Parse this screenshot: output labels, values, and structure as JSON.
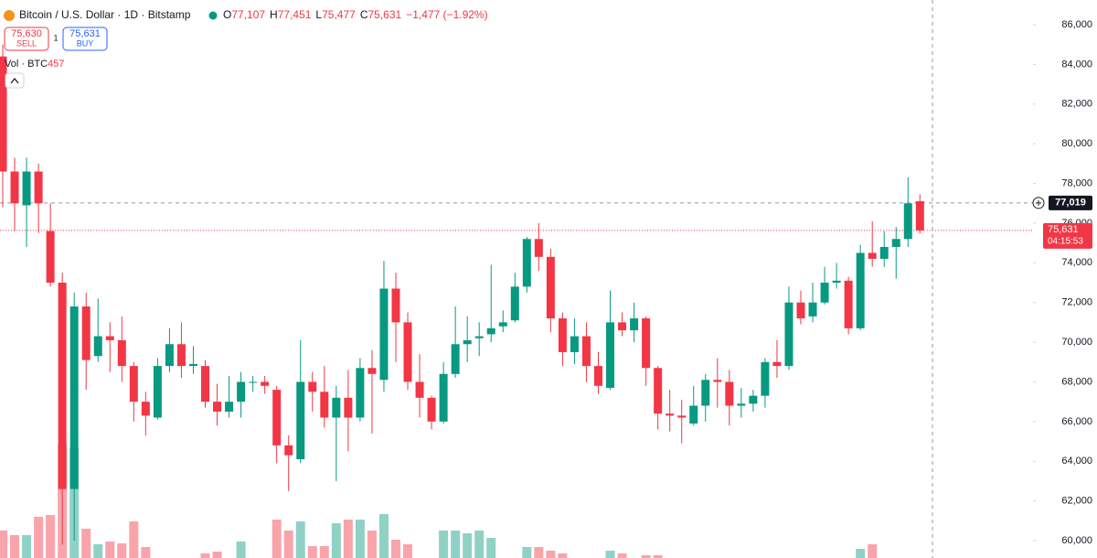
{
  "chart_data": {
    "type": "candlestick",
    "title": "Bitcoin / U.S. Dollar · 1D · Bitstamp",
    "ohlc_header": {
      "o_label": "O",
      "o": "77,107",
      "h_label": "H",
      "h": "77,451",
      "l_label": "L",
      "l": "75,477",
      "c_label": "C",
      "c": "75,631",
      "change": "−1,477 (−1.92%)"
    },
    "trade": {
      "sell_price": "75,630",
      "sell": "SELL",
      "quantity": "1",
      "buy_price": "75,631",
      "buy": "BUY"
    },
    "volume_label": "Vol · BTC",
    "volume_last": "457",
    "crosshair": {
      "value": 77019,
      "label": "77,019"
    },
    "last_price": {
      "value": 75631,
      "label": "75,631",
      "countdown": "04:15:53"
    },
    "up_color": "#089981",
    "down_color": "#f23645",
    "open": [
      84400,
      78600,
      76900,
      78600,
      75600,
      73000,
      62600,
      71800,
      69300,
      70300,
      70100,
      68800,
      67000,
      66200,
      68800,
      69900,
      68800,
      68800,
      67000,
      66500,
      67000,
      68000,
      68000,
      67600,
      64800,
      64100,
      68000,
      67500,
      66200,
      67200,
      66200,
      68700,
      68100,
      72700,
      71000,
      68000,
      67200,
      66000,
      68400,
      69900,
      70200,
      70400,
      70800,
      71100,
      72800,
      75200,
      74300,
      71200,
      69500,
      70300,
      68800,
      67700,
      71000,
      70600,
      71200,
      68700,
      66400,
      66300,
      65900,
      66800,
      68100,
      68000,
      66800,
      66900,
      67300,
      69000,
      68800,
      72000,
      71300,
      72000,
      73000,
      73100,
      70700,
      74500,
      74200,
      74800,
      75200,
      77107
    ],
    "high": [
      85000,
      79300,
      79300,
      79000,
      77000,
      73500,
      72500,
      72500,
      72200,
      71000,
      71300,
      69000,
      67500,
      69200,
      70700,
      71000,
      69800,
      69100,
      67900,
      68300,
      68500,
      68300,
      68300,
      67800,
      65300,
      70100,
      68500,
      68800,
      67800,
      68600,
      69200,
      69600,
      74100,
      73500,
      71500,
      69400,
      67300,
      69000,
      71800,
      71300,
      71000,
      73900,
      71600,
      73500,
      75300,
      76000,
      74700,
      71500,
      71200,
      71000,
      69500,
      72600,
      71500,
      72000,
      71300,
      68800,
      67600,
      67100,
      67800,
      68400,
      69200,
      68600,
      67700,
      67600,
      69200,
      70100,
      72800,
      72600,
      73000,
      73800,
      74000,
      73300,
      74900,
      76100,
      75600,
      75800,
      78300,
      77451
    ],
    "low": [
      76800,
      75600,
      74800,
      75500,
      72800,
      59800,
      60000,
      67600,
      69000,
      68500,
      68000,
      66000,
      65300,
      66100,
      68500,
      68200,
      68400,
      66700,
      65800,
      66200,
      66200,
      67500,
      67400,
      63900,
      62500,
      63900,
      66500,
      65700,
      63000,
      64500,
      66000,
      65400,
      67500,
      69000,
      67600,
      66200,
      65600,
      65900,
      68200,
      69000,
      69300,
      70000,
      70500,
      71000,
      72500,
      73600,
      70500,
      68800,
      68900,
      68000,
      67400,
      67600,
      70300,
      70000,
      67800,
      65600,
      65500,
      64900,
      65800,
      66000,
      66700,
      65800,
      66200,
      66500,
      66700,
      68200,
      68600,
      70900,
      71000,
      71900,
      72700,
      70400,
      70600,
      73800,
      73800,
      73200,
      74800,
      75477
    ],
    "close": [
      78600,
      77000,
      78600,
      77000,
      73000,
      62600,
      71800,
      69100,
      70300,
      70100,
      68800,
      67000,
      66300,
      68800,
      69900,
      68800,
      68900,
      67000,
      66500,
      67000,
      68000,
      68000,
      67800,
      64800,
      64300,
      68000,
      67500,
      66200,
      67200,
      66200,
      68700,
      68400,
      72700,
      71000,
      68000,
      67200,
      66000,
      68400,
      69900,
      70100,
      70300,
      70700,
      71000,
      72800,
      75200,
      74300,
      71200,
      69500,
      70300,
      68800,
      67800,
      71000,
      70600,
      71200,
      68700,
      66400,
      66300,
      66200,
      66800,
      68100,
      68000,
      66800,
      66900,
      67300,
      69000,
      68800,
      72000,
      71200,
      72000,
      73000,
      73100,
      70700,
      74500,
      74200,
      74800,
      75200,
      77000,
      75631
    ],
    "volume": [
      4000,
      3500,
      3500,
      5500,
      5700,
      13500,
      13000,
      4200,
      2500,
      2800,
      2600,
      5000,
      2200,
      800,
      800,
      800,
      800,
      1500,
      1700,
      800,
      2800,
      800,
      800,
      5200,
      4000,
      5000,
      2300,
      2300,
      4800,
      5200,
      5200,
      4000,
      5800,
      3000,
      2500,
      800,
      800,
      4000,
      4000,
      3700,
      4000,
      3200,
      800,
      800,
      2200,
      2200,
      1800,
      1500,
      800,
      800,
      800,
      1800,
      1500,
      800,
      1300,
      1300,
      800,
      800,
      800,
      800,
      800,
      800,
      800,
      800,
      800,
      800,
      800,
      800,
      800,
      800,
      800,
      800,
      2000,
      2500,
      800,
      800,
      800,
      457
    ],
    "vlim": [
      0,
      20000
    ],
    "ylim": [
      59124,
      87245
    ],
    "yticks": [
      {
        "value": 60000,
        "label": "60,000"
      },
      {
        "value": 62000,
        "label": "62,000"
      },
      {
        "value": 64000,
        "label": "64,000"
      },
      {
        "value": 66000,
        "label": "66,000"
      },
      {
        "value": 68000,
        "label": "68,000"
      },
      {
        "value": 70000,
        "label": "70,000"
      },
      {
        "value": 72000,
        "label": "72,000"
      },
      {
        "value": 74000,
        "label": "74,000"
      },
      {
        "value": 76000,
        "label": "76,000"
      },
      {
        "value": 78000,
        "label": "78,000"
      },
      {
        "value": 80000,
        "label": "80,000"
      },
      {
        "value": 82000,
        "label": "82,000"
      },
      {
        "value": 84000,
        "label": "84,000"
      },
      {
        "value": 86000,
        "label": "86,000"
      }
    ]
  }
}
